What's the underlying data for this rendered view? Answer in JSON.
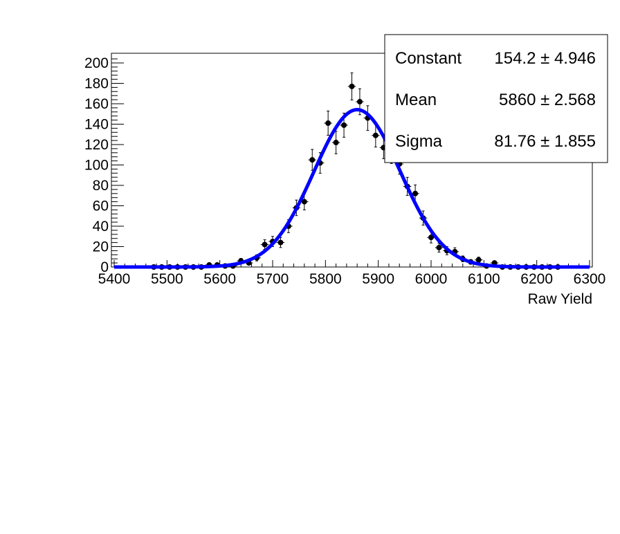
{
  "chart_data": {
    "type": "scatter",
    "title": "",
    "xlabel": "Raw Yield",
    "ylabel": "",
    "xlim": [
      5400,
      6300
    ],
    "ylim": [
      0,
      208
    ],
    "x_ticks": [
      "5400",
      "5500",
      "5600",
      "5700",
      "5800",
      "5900",
      "6000",
      "6100",
      "6200",
      "6300"
    ],
    "y_ticks": [
      "0",
      "20",
      "40",
      "60",
      "80",
      "100",
      "120",
      "140",
      "160",
      "180",
      "200"
    ],
    "grid": false,
    "series": [
      {
        "kind": "histogram-points",
        "x": [
          5475,
          5490,
          5505,
          5520,
          5535,
          5550,
          5565,
          5580,
          5595,
          5610,
          5625,
          5640,
          5655,
          5670,
          5685,
          5700,
          5715,
          5730,
          5745,
          5760,
          5775,
          5790,
          5805,
          5820,
          5835,
          5850,
          5865,
          5880,
          5895,
          5910,
          5925,
          5940,
          5955,
          5970,
          5985,
          6000,
          6015,
          6030,
          6045,
          6060,
          6075,
          6090,
          6105,
          6120,
          6135,
          6150,
          6165,
          6180,
          6195,
          6210,
          6225,
          6240
        ],
        "y": [
          0,
          0,
          0,
          0,
          0,
          0,
          0,
          2,
          2,
          1,
          1,
          6,
          4,
          9,
          22,
          25,
          24,
          40,
          58,
          64,
          105,
          102,
          141,
          122,
          139,
          177,
          162,
          146,
          129,
          117,
          112,
          101,
          79,
          72,
          48,
          29,
          19,
          16,
          15,
          8,
          5,
          7,
          1,
          4,
          0,
          0,
          0,
          0,
          0,
          0,
          0,
          0
        ],
        "color": "#000000"
      },
      {
        "kind": "gaussian-fit",
        "constant": 154.2,
        "mean": 5860,
        "sigma": 81.76,
        "color": "#0000ff"
      }
    ],
    "stats_box": {
      "rows": [
        {
          "label": "Constant",
          "value": "154.2 ± 4.946"
        },
        {
          "label": "Mean",
          "value": "5860 ± 2.568"
        },
        {
          "label": "Sigma",
          "value": "81.76 ± 1.855"
        }
      ],
      "position": "top-right"
    }
  }
}
